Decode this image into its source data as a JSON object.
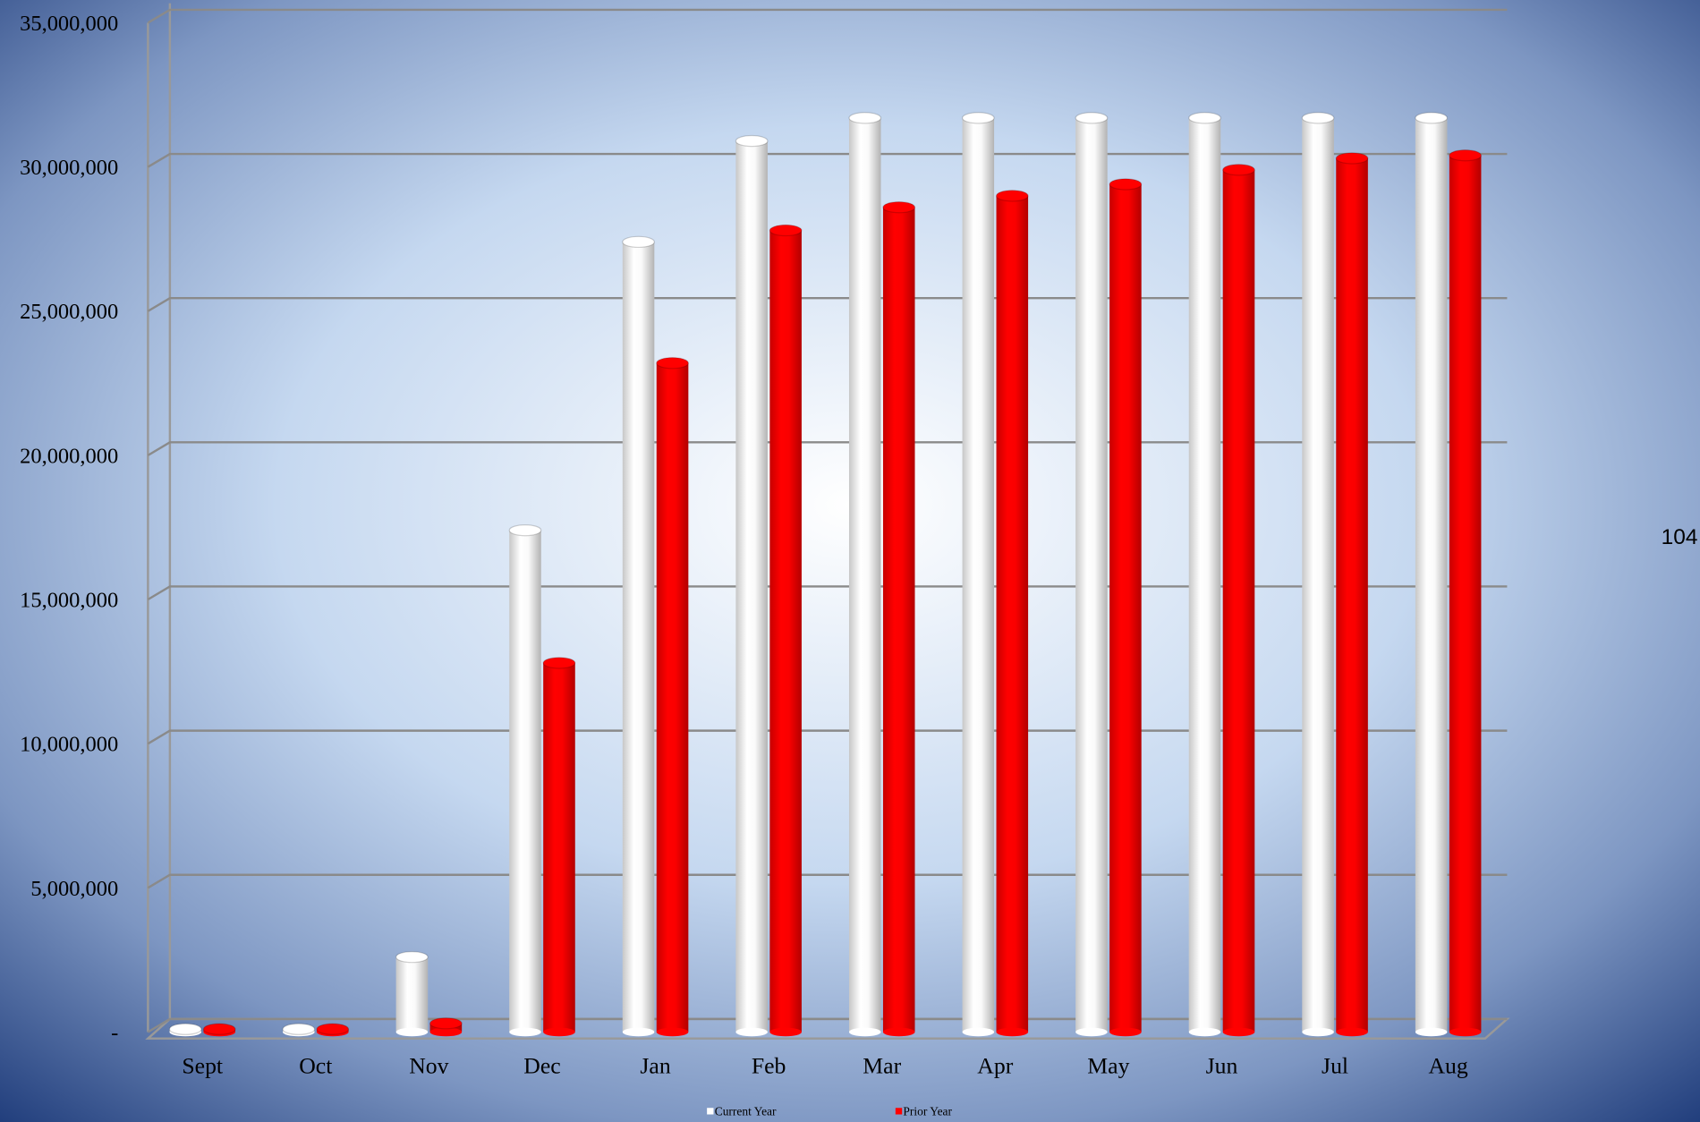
{
  "chart_data": {
    "type": "bar",
    "categories": [
      "Sept",
      "Oct",
      "Nov",
      "Dec",
      "Jan",
      "Feb",
      "Mar",
      "Apr",
      "May",
      "Jun",
      "Jul",
      "Aug"
    ],
    "series": [
      {
        "name": "Current Year",
        "color": "#ffffff",
        "values": [
          100000,
          100000,
          2600000,
          17400000,
          27400000,
          30900000,
          31700000,
          31700000,
          31700000,
          31700000,
          31700000,
          31700000
        ]
      },
      {
        "name": "Prior Year",
        "color": "#ff0000",
        "values": [
          100000,
          100000,
          300000,
          12800000,
          23200000,
          27800000,
          28600000,
          29000000,
          29400000,
          29900000,
          30300000,
          30400000
        ]
      }
    ],
    "ylim": [
      0,
      35000000
    ],
    "yticks": [
      {
        "value": 0,
        "label": "-"
      },
      {
        "value": 5000000,
        "label": "5,000,000"
      },
      {
        "value": 10000000,
        "label": "10,000,000"
      },
      {
        "value": 15000000,
        "label": "15,000,000"
      },
      {
        "value": 20000000,
        "label": "20,000,000"
      },
      {
        "value": 25000000,
        "label": "25,000,000"
      },
      {
        "value": 30000000,
        "label": "30,000,000"
      },
      {
        "value": 35000000,
        "label": "35,000,000"
      }
    ],
    "grid": true,
    "legend": "bottom"
  },
  "page_number": "104"
}
